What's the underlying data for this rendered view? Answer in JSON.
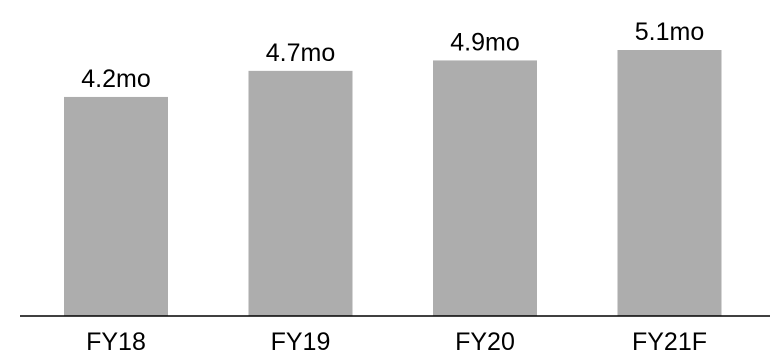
{
  "chart_data": {
    "type": "bar",
    "categories": [
      "FY18",
      "FY19",
      "FY20",
      "FY21F"
    ],
    "values": [
      4.2,
      4.7,
      4.9,
      5.1
    ],
    "data_labels": [
      "4.2mo",
      "4.7mo",
      "4.9mo",
      "5.1mo"
    ],
    "title": "",
    "xlabel": "",
    "ylabel": "",
    "ylim": [
      0,
      5.1
    ],
    "grid": false,
    "legend": "none",
    "bar_color": "#adadad",
    "axis_color": "#000000"
  }
}
